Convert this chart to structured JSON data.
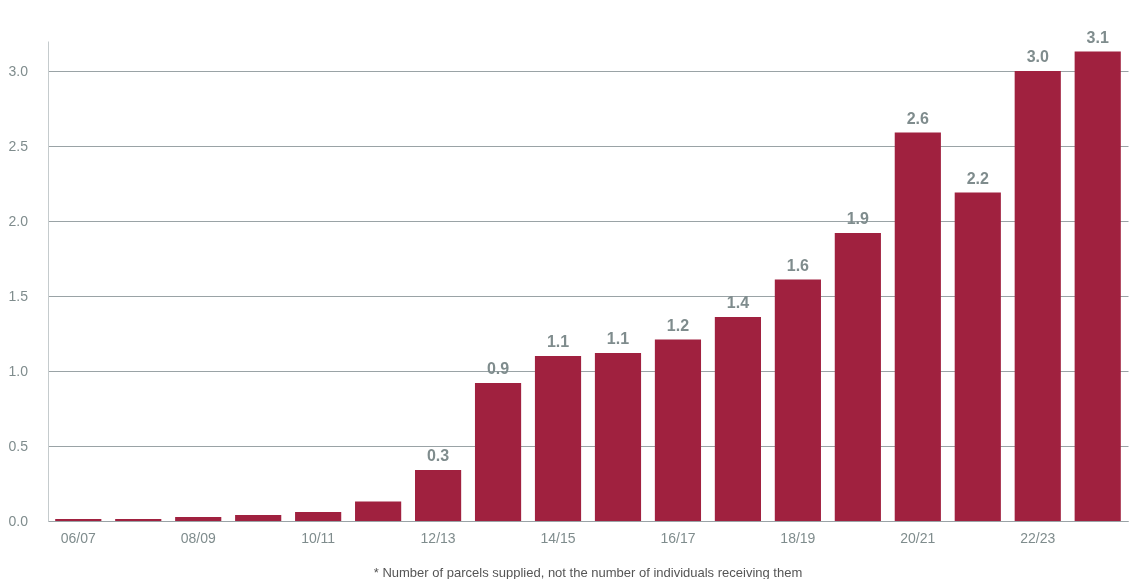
{
  "chart_data": {
    "type": "bar",
    "categories": [
      "06/07",
      null,
      "08/09",
      null,
      "10/11",
      null,
      "12/13",
      null,
      "14/15",
      null,
      "16/17",
      null,
      "18/19",
      null,
      "20/21",
      null,
      "22/23",
      null
    ],
    "series": [
      {
        "color": "#a0213f",
        "values": [
          0.013,
          0.013,
          0.026,
          0.04,
          0.06,
          0.13,
          0.34,
          0.92,
          1.1,
          1.12,
          1.21,
          1.36,
          1.61,
          1.92,
          2.59,
          2.19,
          3.0,
          3.13
        ],
        "value_labels": [
          null,
          null,
          null,
          null,
          null,
          null,
          "0.3",
          "0.9",
          "1.1",
          "1.1",
          "1.2",
          "1.4",
          "1.6",
          "1.9",
          "2.6",
          "2.2",
          "3.0",
          "3.1"
        ]
      }
    ],
    "ylim": [
      0,
      3.2
    ],
    "yticks": [
      {
        "value": 0,
        "label": "0.0"
      },
      0.5,
      {
        "value": 1,
        "label": "1.0"
      },
      1.5,
      {
        "value": 2,
        "label": "2.0"
      },
      2.5,
      {
        "value": 3,
        "label": "3.0"
      }
    ],
    "grid": "y",
    "annotations": [
      "* Number of parcels supplied, not the number of individuals receiving them"
    ]
  }
}
